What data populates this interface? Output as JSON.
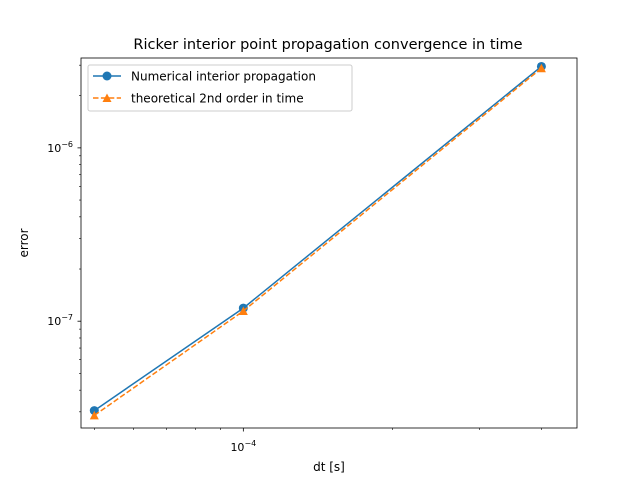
{
  "chart_data": {
    "type": "line",
    "title": "Ricker interior point propagation convergence in time",
    "xlabel": "dt [s]",
    "ylabel": "error",
    "xscale": "log",
    "yscale": "log",
    "xlim": [
      4.7e-05,
      0.000472
    ],
    "ylim": [
      2.42e-08,
      3.3e-06
    ],
    "x_major_ticks": [
      {
        "value": 0.0001,
        "base": "10",
        "exp": "−4"
      }
    ],
    "x_minor_ticks": [
      5e-05,
      6e-05,
      7e-05,
      8e-05,
      9e-05,
      0.0002,
      0.0003,
      0.0004
    ],
    "y_major_ticks": [
      {
        "value": 1e-07,
        "base": "10",
        "exp": "−7"
      },
      {
        "value": 1e-06,
        "base": "10",
        "exp": "−6"
      }
    ],
    "y_minor_ticks": [
      3e-08,
      4e-08,
      5e-08,
      6e-08,
      7e-08,
      8e-08,
      9e-08,
      2e-07,
      3e-07,
      4e-07,
      5e-07,
      6e-07,
      7e-07,
      8e-07,
      9e-07,
      2e-06,
      3e-06
    ],
    "legend_position": "upper-left",
    "series": [
      {
        "name": "Numerical interior propagation",
        "color": "#1f77b4",
        "line": "solid",
        "marker": "circle",
        "x": [
          5e-05,
          0.0001,
          0.0004
        ],
        "y": [
          3.05e-08,
          1.19e-07,
          2.95e-06
        ]
      },
      {
        "name": "theoretical 2nd order in time",
        "color": "#ff7f0e",
        "line": "dashed",
        "marker": "triangle",
        "x": [
          5e-05,
          0.0001,
          0.0004
        ],
        "y": [
          2.86e-08,
          1.145e-07,
          2.88e-06
        ]
      }
    ]
  }
}
